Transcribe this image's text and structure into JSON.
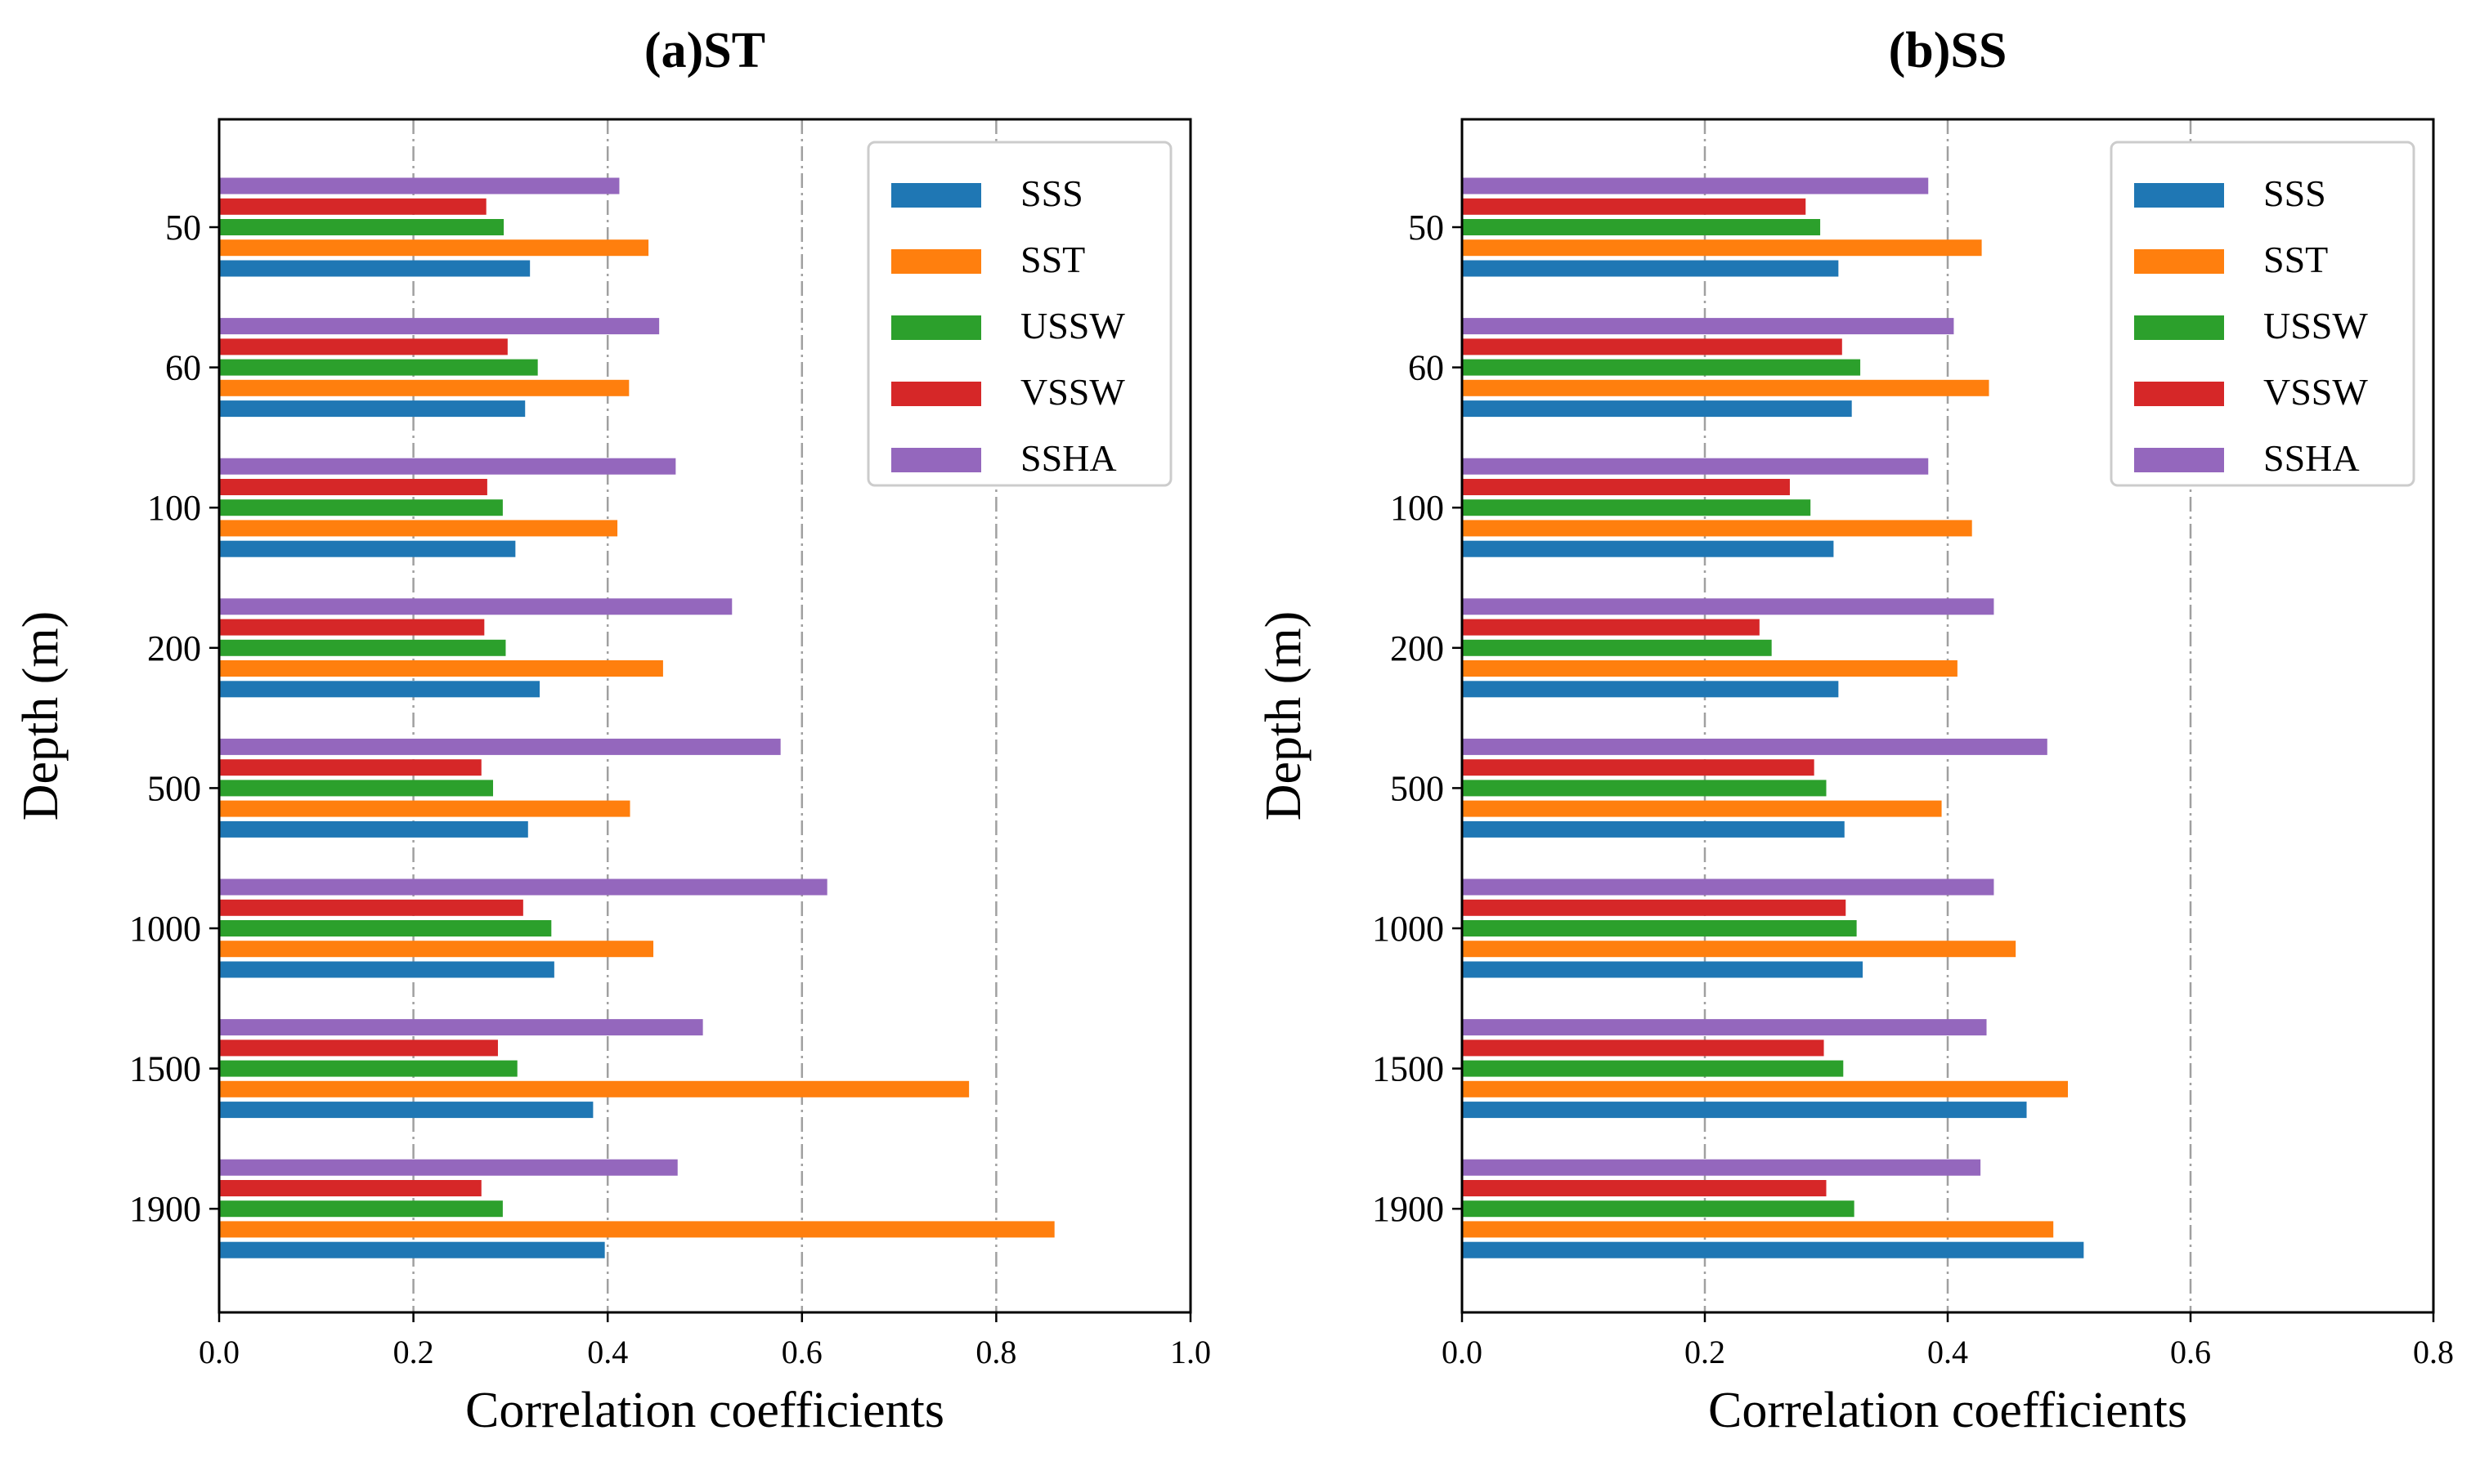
{
  "chart_data": [
    {
      "type": "bar",
      "orientation": "horizontal",
      "title": "(a)ST",
      "xlabel": "Correlation coefficients",
      "ylabel": "Depth (m)",
      "xlim": [
        0.0,
        1.0
      ],
      "xticks": [
        "0.0",
        "0.2",
        "0.4",
        "0.6",
        "0.8",
        "1.0"
      ],
      "grid": "vertical dash-dot",
      "legend_position": "top-right",
      "categories": [
        "50",
        "60",
        "100",
        "200",
        "500",
        "1000",
        "1500",
        "1900"
      ],
      "series": [
        {
          "name": "SSS",
          "values": [
            0.32,
            0.315,
            0.305,
            0.33,
            0.318,
            0.345,
            0.385,
            0.397
          ]
        },
        {
          "name": "SST",
          "values": [
            0.442,
            0.422,
            0.41,
            0.457,
            0.423,
            0.447,
            0.772,
            0.86
          ]
        },
        {
          "name": "USSW",
          "values": [
            0.293,
            0.328,
            0.292,
            0.295,
            0.282,
            0.342,
            0.307,
            0.292
          ]
        },
        {
          "name": "VSSW",
          "values": [
            0.275,
            0.297,
            0.276,
            0.273,
            0.27,
            0.313,
            0.287,
            0.27
          ]
        },
        {
          "name": "SSHA",
          "values": [
            0.412,
            0.453,
            0.47,
            0.528,
            0.578,
            0.626,
            0.498,
            0.472
          ]
        }
      ]
    },
    {
      "type": "bar",
      "orientation": "horizontal",
      "title": "(b)SS",
      "xlabel": "Correlation coefficients",
      "ylabel": "Depth (m)",
      "xlim": [
        0.0,
        0.8
      ],
      "xticks": [
        "0.0",
        "0.2",
        "0.4",
        "0.6",
        "0.8"
      ],
      "grid": "vertical dash-dot",
      "legend_position": "top-right",
      "categories": [
        "50",
        "60",
        "100",
        "200",
        "500",
        "1000",
        "1500",
        "1900"
      ],
      "series": [
        {
          "name": "SSS",
          "values": [
            0.31,
            0.321,
            0.306,
            0.31,
            0.315,
            0.33,
            0.465,
            0.512
          ]
        },
        {
          "name": "SST",
          "values": [
            0.428,
            0.434,
            0.42,
            0.408,
            0.395,
            0.456,
            0.499,
            0.487
          ]
        },
        {
          "name": "USSW",
          "values": [
            0.295,
            0.328,
            0.287,
            0.255,
            0.3,
            0.325,
            0.314,
            0.323
          ]
        },
        {
          "name": "VSSW",
          "values": [
            0.283,
            0.313,
            0.27,
            0.245,
            0.29,
            0.316,
            0.298,
            0.3
          ]
        },
        {
          "name": "SSHA",
          "values": [
            0.384,
            0.405,
            0.384,
            0.438,
            0.482,
            0.438,
            0.432,
            0.427
          ]
        }
      ]
    }
  ],
  "colors": {
    "SSS": "#1f77b4",
    "SST": "#ff7f0e",
    "USSW": "#2ca02c",
    "VSSW": "#d62728",
    "SSHA": "#9467bd",
    "grid": "#a0a0a0"
  }
}
